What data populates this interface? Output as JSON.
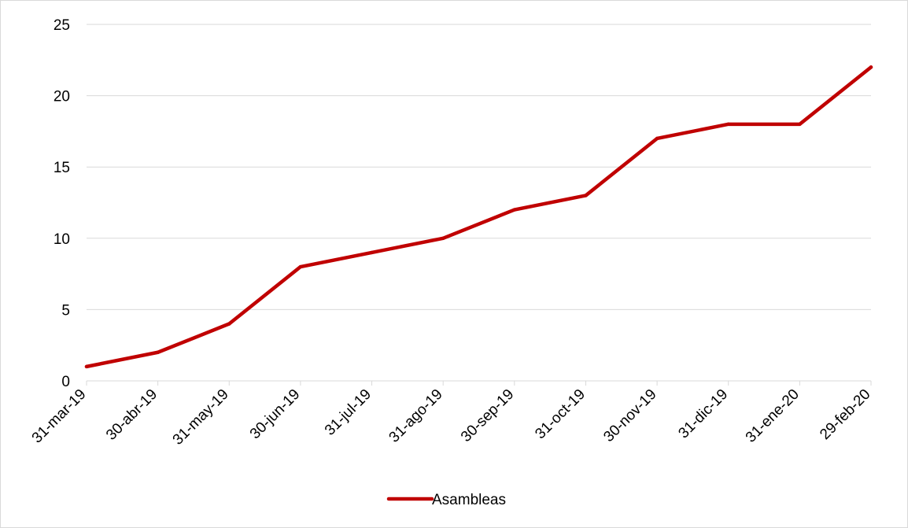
{
  "chart_data": {
    "type": "line",
    "title": "",
    "xlabel": "",
    "ylabel": "",
    "categories": [
      "31-mar-19",
      "30-abr-19",
      "31-may-19",
      "30-jun-19",
      "31-jul-19",
      "31-ago-19",
      "30-sep-19",
      "31-oct-19",
      "30-nov-19",
      "31-dic-19",
      "31-ene-20",
      "29-feb-20"
    ],
    "series": [
      {
        "name": "Asambleas",
        "color": "#c00000",
        "values": [
          1,
          2,
          4,
          8,
          9,
          10,
          12,
          13,
          17,
          18,
          18,
          22
        ]
      }
    ],
    "ylim": [
      0,
      25
    ],
    "yticks": [
      0,
      5,
      10,
      15,
      20,
      25
    ],
    "grid": true,
    "legend_position": "bottom"
  }
}
